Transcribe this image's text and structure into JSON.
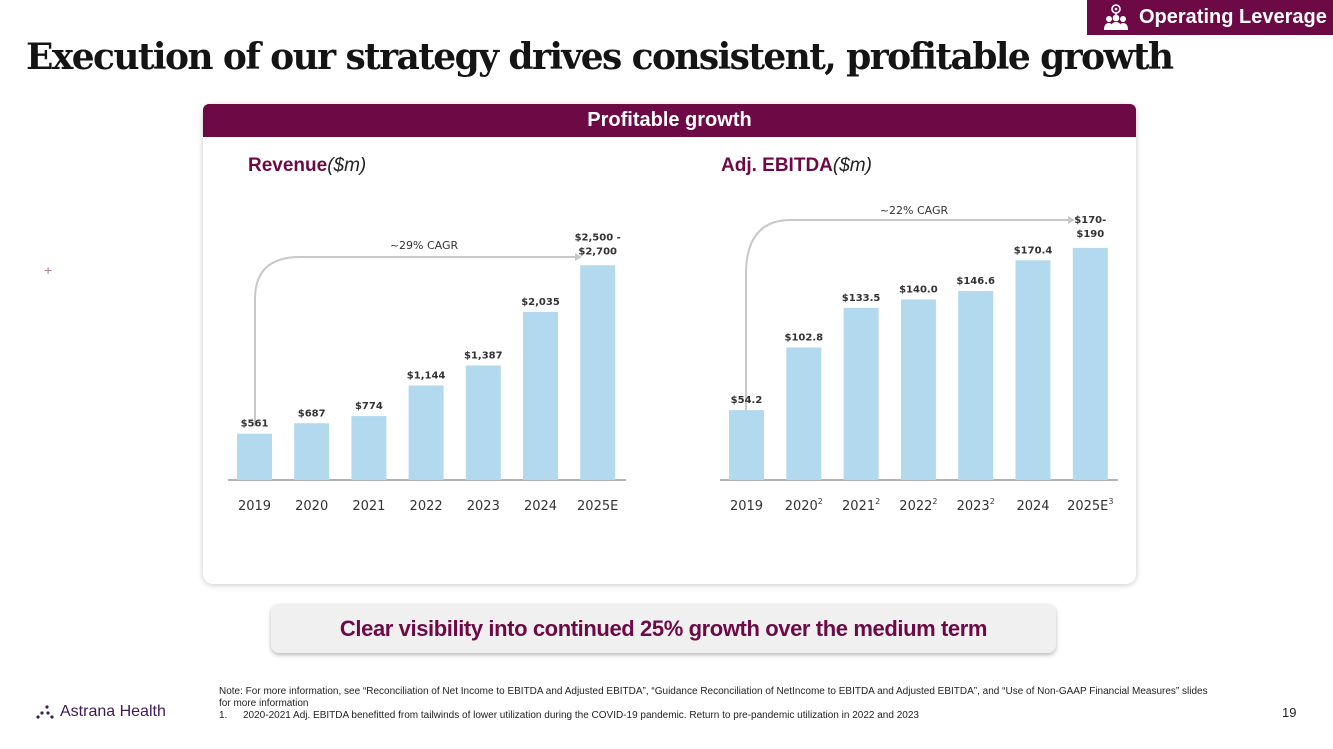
{
  "badge": {
    "label": "Operating Leverage",
    "icon": "team-pin-icon"
  },
  "title": "Execution of our strategy drives consistent, profitable growth",
  "card": {
    "header": "Profitable growth"
  },
  "colors": {
    "brand": "#6d0a45",
    "bar": "#b2d9ee",
    "axis": "#9a9a9a",
    "arrow": "#c8c8c8"
  },
  "chart_data": [
    {
      "type": "bar",
      "title": "Revenue",
      "unit_label": "($m)",
      "cagr_label": "~29% CAGR",
      "categories": [
        "2019",
        "2020",
        "2021",
        "2022",
        "2023",
        "2024",
        "2025E"
      ],
      "values": [
        561,
        687,
        774,
        1144,
        1387,
        2035,
        2600
      ],
      "value_labels": [
        "$561",
        "$687",
        "$774",
        "$1,144",
        "$1,387",
        "$2,035",
        [
          "$2,500 -",
          "$2,700"
        ]
      ],
      "ylim": [
        0,
        2700
      ]
    },
    {
      "type": "bar",
      "title": "Adj. EBITDA",
      "unit_label": "($m)",
      "cagr_label": "~22% CAGR",
      "categories": [
        {
          "year": "2019",
          "sup": ""
        },
        {
          "year": "2020",
          "sup": "2"
        },
        {
          "year": "2021",
          "sup": "2"
        },
        {
          "year": "2022",
          "sup": "2"
        },
        {
          "year": "2023",
          "sup": "2"
        },
        {
          "year": "2024",
          "sup": ""
        },
        {
          "year": "2025E",
          "sup": "3"
        }
      ],
      "values": [
        54.2,
        102.8,
        133.5,
        140.0,
        146.6,
        170.4,
        180
      ],
      "value_labels": [
        "$54.2",
        "$102.8",
        "$133.5",
        "$140.0",
        "$146.6",
        "$170.4",
        [
          "$170-",
          "$190"
        ]
      ],
      "ylim": [
        0,
        190
      ]
    }
  ],
  "callout": "Clear visibility into continued 25% growth over the medium term",
  "footer": {
    "logo_text": "Astrana Health",
    "note": "Note: For more information, see “Reconciliation of Net Income to EBITDA and Adjusted EBITDA”, “Guidance Reconciliation of NetIncome to EBITDA and Adjusted EBITDA”, and “Use of Non-GAAP Financial Measures” slides for more information",
    "footnote_num": "1.",
    "footnote_text": "2020-2021 Adj. EBITDA benefitted from tailwinds of lower utilization during the COVID-19 pandemic.  Return to pre-pandemic utilization in 2022 and 2023",
    "page_number": "19"
  }
}
